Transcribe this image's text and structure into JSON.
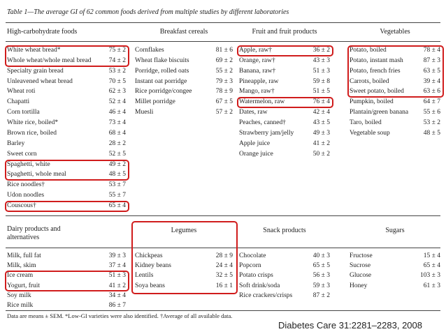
{
  "title": "Table 1—The average GI of 62 common foods derived from multiple studies by different laboratories",
  "sections": [
    {
      "columns": [
        {
          "header": "High-carbohydrate foods",
          "rows": [
            {
              "food": "White wheat bread*",
              "gi": "75 ± 2",
              "highlighted": true
            },
            {
              "food": "Whole wheat/whole meal bread",
              "gi": "74 ± 2",
              "highlighted": true
            },
            {
              "food": "Specialty grain bread",
              "gi": "53 ± 2"
            },
            {
              "food": "Unleavened wheat bread",
              "gi": "70 ± 5"
            },
            {
              "food": "Wheat roti",
              "gi": "62 ± 3"
            },
            {
              "food": "Chapatti",
              "gi": "52 ± 4"
            },
            {
              "food": "Corn tortilla",
              "gi": "46 ± 4"
            },
            {
              "food": "White rice, boiled*",
              "gi": "73 ± 4"
            },
            {
              "food": "Brown rice, boiled",
              "gi": "68 ± 4"
            },
            {
              "food": "Barley",
              "gi": "28 ± 2"
            },
            {
              "food": "Sweet corn",
              "gi": "52 ± 5"
            },
            {
              "food": "Spaghetti, white",
              "gi": "49 ± 2",
              "highlighted": true
            },
            {
              "food": "Spaghetti, whole meal",
              "gi": "48 ± 5",
              "highlighted": true
            },
            {
              "food": "Rice noodles†",
              "gi": "53 ± 7"
            },
            {
              "food": "Udon noodles",
              "gi": "55 ± 7"
            },
            {
              "food": "Couscous†",
              "gi": "65 ± 4",
              "highlighted": true
            }
          ]
        },
        {
          "header": "Breakfast cereals",
          "rows": [
            {
              "food": "Cornflakes",
              "gi": "81 ± 6"
            },
            {
              "food": "Wheat flake biscuits",
              "gi": "69 ± 2"
            },
            {
              "food": "Porridge, rolled oats",
              "gi": "55 ± 2"
            },
            {
              "food": "Instant oat porridge",
              "gi": "79 ± 3"
            },
            {
              "food": "Rice porridge/congee",
              "gi": "78 ± 9"
            },
            {
              "food": "Millet porridge",
              "gi": "67 ± 5"
            },
            {
              "food": "Muesli",
              "gi": "57 ± 2"
            }
          ]
        },
        {
          "header": "Fruit and fruit products",
          "rows": [
            {
              "food": "Apple, raw†",
              "gi": "36 ± 2",
              "highlighted": true
            },
            {
              "food": "Orange, raw†",
              "gi": "43 ± 3"
            },
            {
              "food": "Banana, raw†",
              "gi": "51 ± 3"
            },
            {
              "food": "Pineapple, raw",
              "gi": "59 ± 8"
            },
            {
              "food": "Mango, raw†",
              "gi": "51 ± 5"
            },
            {
              "food": "Watermelon, raw",
              "gi": "76 ± 4",
              "highlighted": true
            },
            {
              "food": "Dates, raw",
              "gi": "42 ± 4"
            },
            {
              "food": "Peaches, canned†",
              "gi": "43 ± 5"
            },
            {
              "food": "Strawberry jam/jelly",
              "gi": "49 ± 3"
            },
            {
              "food": "Apple juice",
              "gi": "41 ± 2"
            },
            {
              "food": "Orange juice",
              "gi": "50 ± 2"
            }
          ]
        },
        {
          "header": "Vegetables",
          "rows": [
            {
              "food": "Potato, boiled",
              "gi": "78 ± 4",
              "highlighted": true
            },
            {
              "food": "Potato, instant mash",
              "gi": "87 ± 3",
              "highlighted": true
            },
            {
              "food": "Potato, french fries",
              "gi": "63 ± 5",
              "highlighted": true
            },
            {
              "food": "Carrots, boiled",
              "gi": "39 ± 4",
              "highlighted": true
            },
            {
              "food": "Sweet potato, boiled",
              "gi": "63 ± 6",
              "highlighted": true
            },
            {
              "food": "Pumpkin, boiled",
              "gi": "64 ± 7"
            },
            {
              "food": "Plantain/green banana",
              "gi": "55 ± 6"
            },
            {
              "food": "Taro, boiled",
              "gi": "53 ± 2"
            },
            {
              "food": "Vegetable soup",
              "gi": "48 ± 5"
            }
          ]
        }
      ]
    },
    {
      "columns": [
        {
          "header": "Dairy products and alternatives",
          "rows": [
            {
              "food": "Milk, full fat",
              "gi": "39 ± 3"
            },
            {
              "food": "Milk, skim",
              "gi": "37 ± 4"
            },
            {
              "food": "Ice cream",
              "gi": "51 ± 3",
              "highlighted": true
            },
            {
              "food": "Yogurt, fruit",
              "gi": "41 ± 2",
              "highlighted": true
            },
            {
              "food": "Soy milk",
              "gi": "34 ± 4"
            },
            {
              "food": "Rice milk",
              "gi": "86 ± 7"
            }
          ]
        },
        {
          "header": "Legumes",
          "highlighted": true,
          "rows": [
            {
              "food": "Chickpeas",
              "gi": "28 ± 9"
            },
            {
              "food": "Kidney beans",
              "gi": "24 ± 4"
            },
            {
              "food": "Lentils",
              "gi": "32 ± 5"
            },
            {
              "food": "Soya beans",
              "gi": "16 ± 1"
            }
          ]
        },
        {
          "header": "Snack products",
          "rows": [
            {
              "food": "Chocolate",
              "gi": "40 ± 3"
            },
            {
              "food": "Popcorn",
              "gi": "65 ± 5"
            },
            {
              "food": "Potato crisps",
              "gi": "56 ± 3"
            },
            {
              "food": "Soft drink/soda",
              "gi": "59 ± 3"
            },
            {
              "food": "Rice crackers/crisps",
              "gi": "87 ± 2"
            }
          ]
        },
        {
          "header": "Sugars",
          "rows": [
            {
              "food": "Fructose",
              "gi": "15 ± 4"
            },
            {
              "food": "Sucrose",
              "gi": "65 ± 4"
            },
            {
              "food": "Glucose",
              "gi": "103 ± 3"
            },
            {
              "food": "Honey",
              "gi": "61 ± 3"
            }
          ]
        }
      ]
    }
  ],
  "footnote": "Data are means ± SEM. *Low-GI varieties were also identified. †Average of all available data.",
  "citation": "Diabetes Care 31:2281–2283, 2008"
}
